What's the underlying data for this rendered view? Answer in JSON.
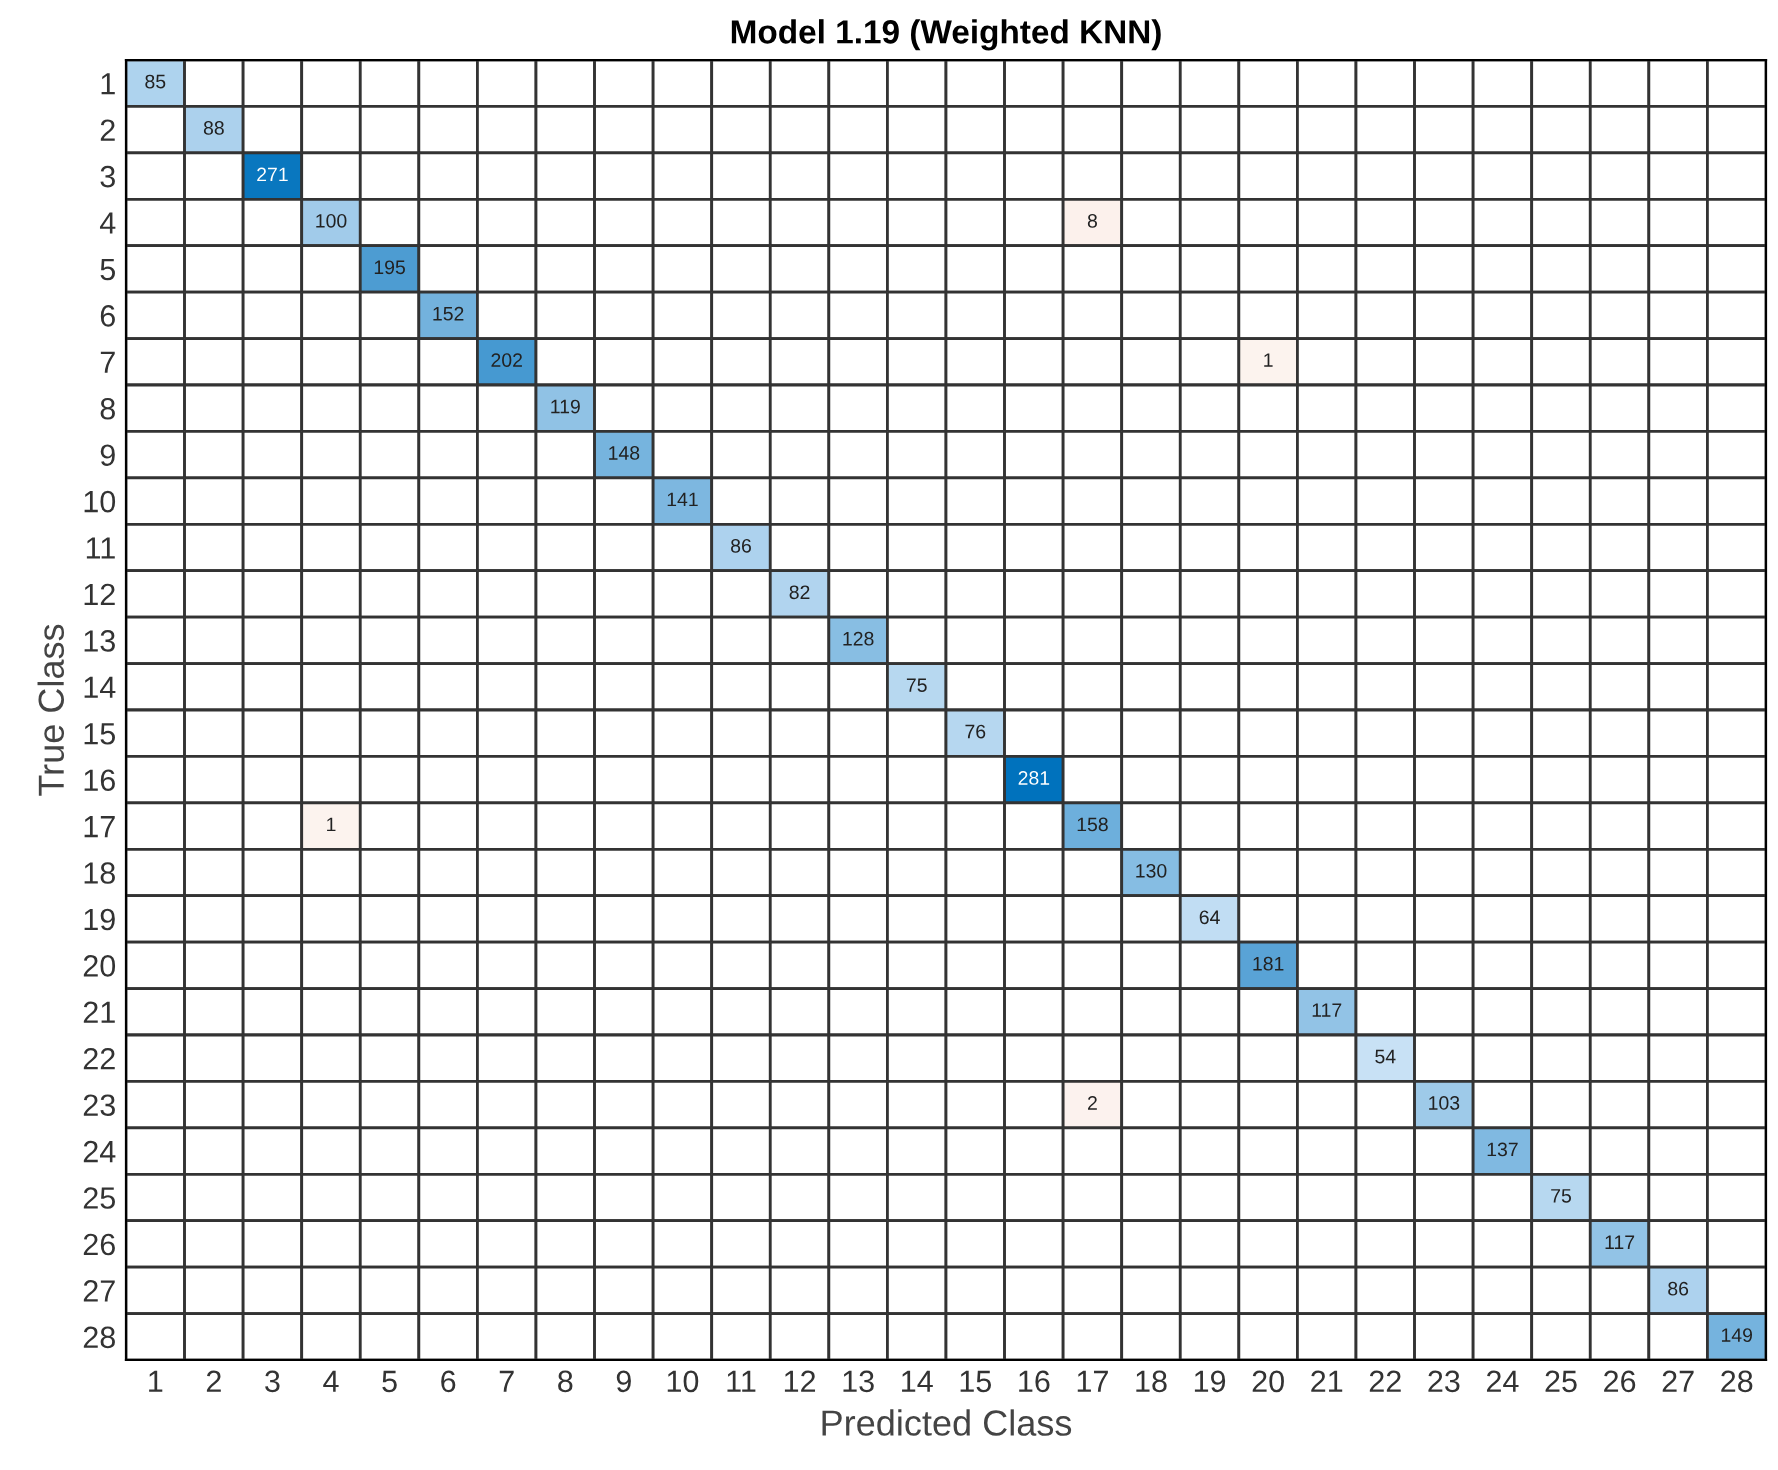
{
  "chart_data": {
    "type": "heatmap",
    "title": "Model 1.19 (Weighted KNN)",
    "xlabel": "Predicted Class",
    "ylabel": "True Class",
    "categories": [
      "1",
      "2",
      "3",
      "4",
      "5",
      "6",
      "7",
      "8",
      "9",
      "10",
      "11",
      "12",
      "13",
      "14",
      "15",
      "16",
      "17",
      "18",
      "19",
      "20",
      "21",
      "22",
      "23",
      "24",
      "25",
      "26",
      "27",
      "28"
    ],
    "y_categories": [
      "1",
      "2",
      "3",
      "4",
      "5",
      "6",
      "7",
      "8",
      "9",
      "10",
      "11",
      "12",
      "13",
      "14",
      "15",
      "16",
      "17",
      "18",
      "19",
      "20",
      "21",
      "22",
      "23",
      "24",
      "25",
      "26",
      "27",
      "28"
    ],
    "cells": [
      [
        85,
        null,
        null,
        null,
        null,
        null,
        null,
        null,
        null,
        null,
        null,
        null,
        null,
        null,
        null,
        null,
        null,
        null,
        null,
        null,
        null,
        null,
        null,
        null,
        null,
        null,
        null,
        null
      ],
      [
        null,
        88,
        null,
        null,
        null,
        null,
        null,
        null,
        null,
        null,
        null,
        null,
        null,
        null,
        null,
        null,
        null,
        null,
        null,
        null,
        null,
        null,
        null,
        null,
        null,
        null,
        null,
        null
      ],
      [
        null,
        null,
        271,
        null,
        null,
        null,
        null,
        null,
        null,
        null,
        null,
        null,
        null,
        null,
        null,
        null,
        null,
        null,
        null,
        null,
        null,
        null,
        null,
        null,
        null,
        null,
        null,
        null
      ],
      [
        null,
        null,
        null,
        100,
        null,
        null,
        null,
        null,
        null,
        null,
        null,
        null,
        null,
        null,
        null,
        null,
        8,
        null,
        null,
        null,
        null,
        null,
        null,
        null,
        null,
        null,
        null,
        null
      ],
      [
        null,
        null,
        null,
        null,
        195,
        null,
        null,
        null,
        null,
        null,
        null,
        null,
        null,
        null,
        null,
        null,
        null,
        null,
        null,
        null,
        null,
        null,
        null,
        null,
        null,
        null,
        null,
        null
      ],
      [
        null,
        null,
        null,
        null,
        null,
        152,
        null,
        null,
        null,
        null,
        null,
        null,
        null,
        null,
        null,
        null,
        null,
        null,
        null,
        null,
        null,
        null,
        null,
        null,
        null,
        null,
        null,
        null
      ],
      [
        null,
        null,
        null,
        null,
        null,
        null,
        202,
        null,
        null,
        null,
        null,
        null,
        null,
        null,
        null,
        null,
        null,
        null,
        null,
        1,
        null,
        null,
        null,
        null,
        null,
        null,
        null,
        null
      ],
      [
        null,
        null,
        null,
        null,
        null,
        null,
        null,
        119,
        null,
        null,
        null,
        null,
        null,
        null,
        null,
        null,
        null,
        null,
        null,
        null,
        null,
        null,
        null,
        null,
        null,
        null,
        null,
        null
      ],
      [
        null,
        null,
        null,
        null,
        null,
        null,
        null,
        null,
        148,
        null,
        null,
        null,
        null,
        null,
        null,
        null,
        null,
        null,
        null,
        null,
        null,
        null,
        null,
        null,
        null,
        null,
        null,
        null
      ],
      [
        null,
        null,
        null,
        null,
        null,
        null,
        null,
        null,
        null,
        141,
        null,
        null,
        null,
        null,
        null,
        null,
        null,
        null,
        null,
        null,
        null,
        null,
        null,
        null,
        null,
        null,
        null,
        null
      ],
      [
        null,
        null,
        null,
        null,
        null,
        null,
        null,
        null,
        null,
        null,
        86,
        null,
        null,
        null,
        null,
        null,
        null,
        null,
        null,
        null,
        null,
        null,
        null,
        null,
        null,
        null,
        null,
        null
      ],
      [
        null,
        null,
        null,
        null,
        null,
        null,
        null,
        null,
        null,
        null,
        null,
        82,
        null,
        null,
        null,
        null,
        null,
        null,
        null,
        null,
        null,
        null,
        null,
        null,
        null,
        null,
        null,
        null
      ],
      [
        null,
        null,
        null,
        null,
        null,
        null,
        null,
        null,
        null,
        null,
        null,
        null,
        128,
        null,
        null,
        null,
        null,
        null,
        null,
        null,
        null,
        null,
        null,
        null,
        null,
        null,
        null,
        null
      ],
      [
        null,
        null,
        null,
        null,
        null,
        null,
        null,
        null,
        null,
        null,
        null,
        null,
        null,
        75,
        null,
        null,
        null,
        null,
        null,
        null,
        null,
        null,
        null,
        null,
        null,
        null,
        null,
        null
      ],
      [
        null,
        null,
        null,
        null,
        null,
        null,
        null,
        null,
        null,
        null,
        null,
        null,
        null,
        null,
        76,
        null,
        null,
        null,
        null,
        null,
        null,
        null,
        null,
        null,
        null,
        null,
        null,
        null
      ],
      [
        null,
        null,
        null,
        null,
        null,
        null,
        null,
        null,
        null,
        null,
        null,
        null,
        null,
        null,
        null,
        281,
        null,
        null,
        null,
        null,
        null,
        null,
        null,
        null,
        null,
        null,
        null,
        null
      ],
      [
        null,
        null,
        null,
        1,
        null,
        null,
        null,
        null,
        null,
        null,
        null,
        null,
        null,
        null,
        null,
        null,
        158,
        null,
        null,
        null,
        null,
        null,
        null,
        null,
        null,
        null,
        null,
        null
      ],
      [
        null,
        null,
        null,
        null,
        null,
        null,
        null,
        null,
        null,
        null,
        null,
        null,
        null,
        null,
        null,
        null,
        null,
        130,
        null,
        null,
        null,
        null,
        null,
        null,
        null,
        null,
        null,
        null
      ],
      [
        null,
        null,
        null,
        null,
        null,
        null,
        null,
        null,
        null,
        null,
        null,
        null,
        null,
        null,
        null,
        null,
        null,
        null,
        64,
        null,
        null,
        null,
        null,
        null,
        null,
        null,
        null,
        null
      ],
      [
        null,
        null,
        null,
        null,
        null,
        null,
        null,
        null,
        null,
        null,
        null,
        null,
        null,
        null,
        null,
        null,
        null,
        null,
        null,
        181,
        null,
        null,
        null,
        null,
        null,
        null,
        null,
        null
      ],
      [
        null,
        null,
        null,
        null,
        null,
        null,
        null,
        null,
        null,
        null,
        null,
        null,
        null,
        null,
        null,
        null,
        null,
        null,
        null,
        null,
        117,
        null,
        null,
        null,
        null,
        null,
        null,
        null
      ],
      [
        null,
        null,
        null,
        null,
        null,
        null,
        null,
        null,
        null,
        null,
        null,
        null,
        null,
        null,
        null,
        null,
        null,
        null,
        null,
        null,
        null,
        54,
        null,
        null,
        null,
        null,
        null,
        null
      ],
      [
        null,
        null,
        null,
        null,
        null,
        null,
        null,
        null,
        null,
        null,
        null,
        null,
        null,
        null,
        null,
        null,
        2,
        null,
        null,
        null,
        null,
        null,
        103,
        null,
        null,
        null,
        null,
        null
      ],
      [
        null,
        null,
        null,
        null,
        null,
        null,
        null,
        null,
        null,
        null,
        null,
        null,
        null,
        null,
        null,
        null,
        null,
        null,
        null,
        null,
        null,
        null,
        null,
        137,
        null,
        null,
        null,
        null
      ],
      [
        null,
        null,
        null,
        null,
        null,
        null,
        null,
        null,
        null,
        null,
        null,
        null,
        null,
        null,
        null,
        null,
        null,
        null,
        null,
        null,
        null,
        null,
        null,
        null,
        75,
        null,
        null,
        null
      ],
      [
        null,
        null,
        null,
        null,
        null,
        null,
        null,
        null,
        null,
        null,
        null,
        null,
        null,
        null,
        null,
        null,
        null,
        null,
        null,
        null,
        null,
        null,
        null,
        null,
        null,
        117,
        null,
        null
      ],
      [
        null,
        null,
        null,
        null,
        null,
        null,
        null,
        null,
        null,
        null,
        null,
        null,
        null,
        null,
        null,
        null,
        null,
        null,
        null,
        null,
        null,
        null,
        null,
        null,
        null,
        null,
        86,
        null
      ],
      [
        null,
        null,
        null,
        null,
        null,
        null,
        null,
        null,
        null,
        null,
        null,
        null,
        null,
        null,
        null,
        null,
        null,
        null,
        null,
        null,
        null,
        null,
        null,
        null,
        null,
        null,
        null,
        149
      ]
    ],
    "data_labels": true
  }
}
